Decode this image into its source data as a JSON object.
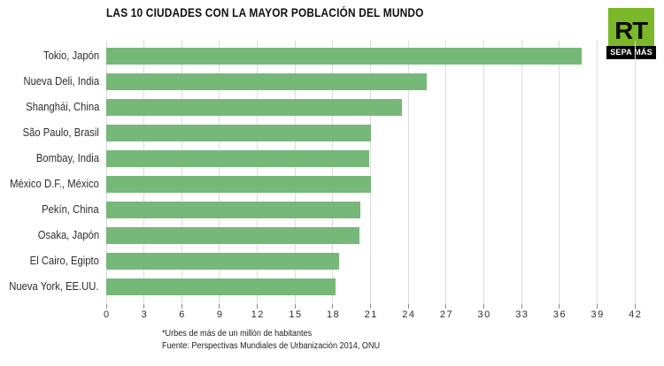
{
  "header": {
    "title": "LAS 10 CIUDADES CON LA MAYOR POBLACIÓN DEL MUNDO"
  },
  "logo": {
    "brand": "RT",
    "tagline": "SEPA MÁS",
    "green": "#7ab829",
    "black": "#000000"
  },
  "chart_data": {
    "type": "bar",
    "orientation": "horizontal",
    "title": "LAS 10 CIUDADES CON LA MAYOR POBLACIÓN DEL MUNDO",
    "categories": [
      "Tokio, Japón",
      "Nueva Deli, India",
      "Shanghái, China",
      "São Paulo, Brasil",
      "Bombay, India",
      "México D.F., México",
      "Pekín, China",
      "Osaka, Japón",
      "El Cairo, Egipto",
      "Nueva York, EE.UU."
    ],
    "values": [
      37.8,
      25.5,
      23.5,
      21.0,
      20.9,
      21.0,
      20.2,
      20.1,
      18.5,
      18.2
    ],
    "xlim": [
      0,
      42
    ],
    "xticks": [
      0,
      3,
      6,
      9,
      12,
      15,
      18,
      21,
      24,
      27,
      30,
      33,
      36,
      39,
      42
    ],
    "grid": true,
    "legend": false,
    "bar_color": "#76b878",
    "grid_color": "#dcdcdc"
  },
  "footer": {
    "note": "*Urbes de más de un millón de habitantes",
    "source": "Fuente: Perspectivas Mundiales de Urbanización 2014, ONU"
  }
}
